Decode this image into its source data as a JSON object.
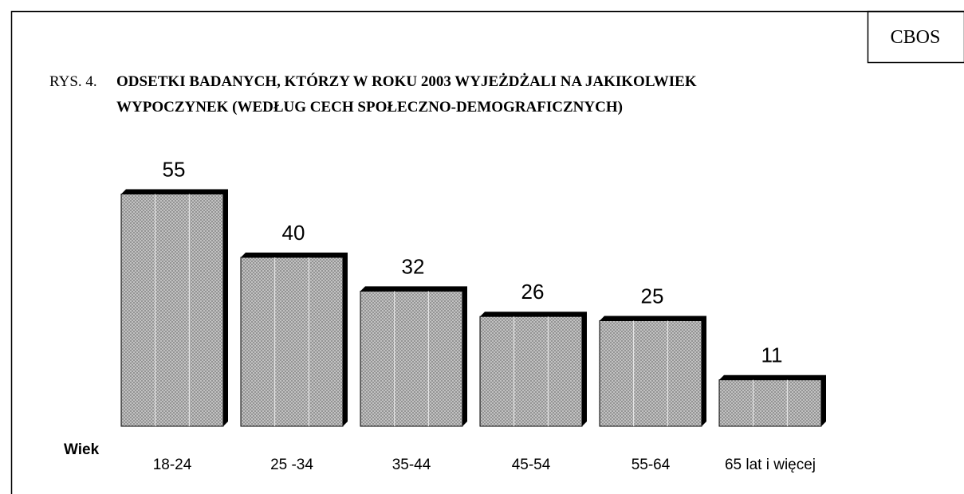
{
  "chart_data": {
    "type": "bar",
    "source": "CBOS",
    "label": "RYS. 4.",
    "title": [
      "ODSETKI BADANYCH, KTÓRZY W ROKU 2003 WYJEŻDŻALI NA JAKIKOLWIEK",
      "WYPOCZYNEK (WEDŁUG CECH SPOŁECZNO-DEMOGRAFICZNYCH)"
    ],
    "x_label": "Wiek",
    "categories": [
      "18-24",
      "25 -34",
      "35-44",
      "45-54",
      "55-64",
      "65 lat i więcej"
    ],
    "values": [
      55,
      40,
      32,
      26,
      25,
      11
    ],
    "color": "#c8c8c8"
  }
}
